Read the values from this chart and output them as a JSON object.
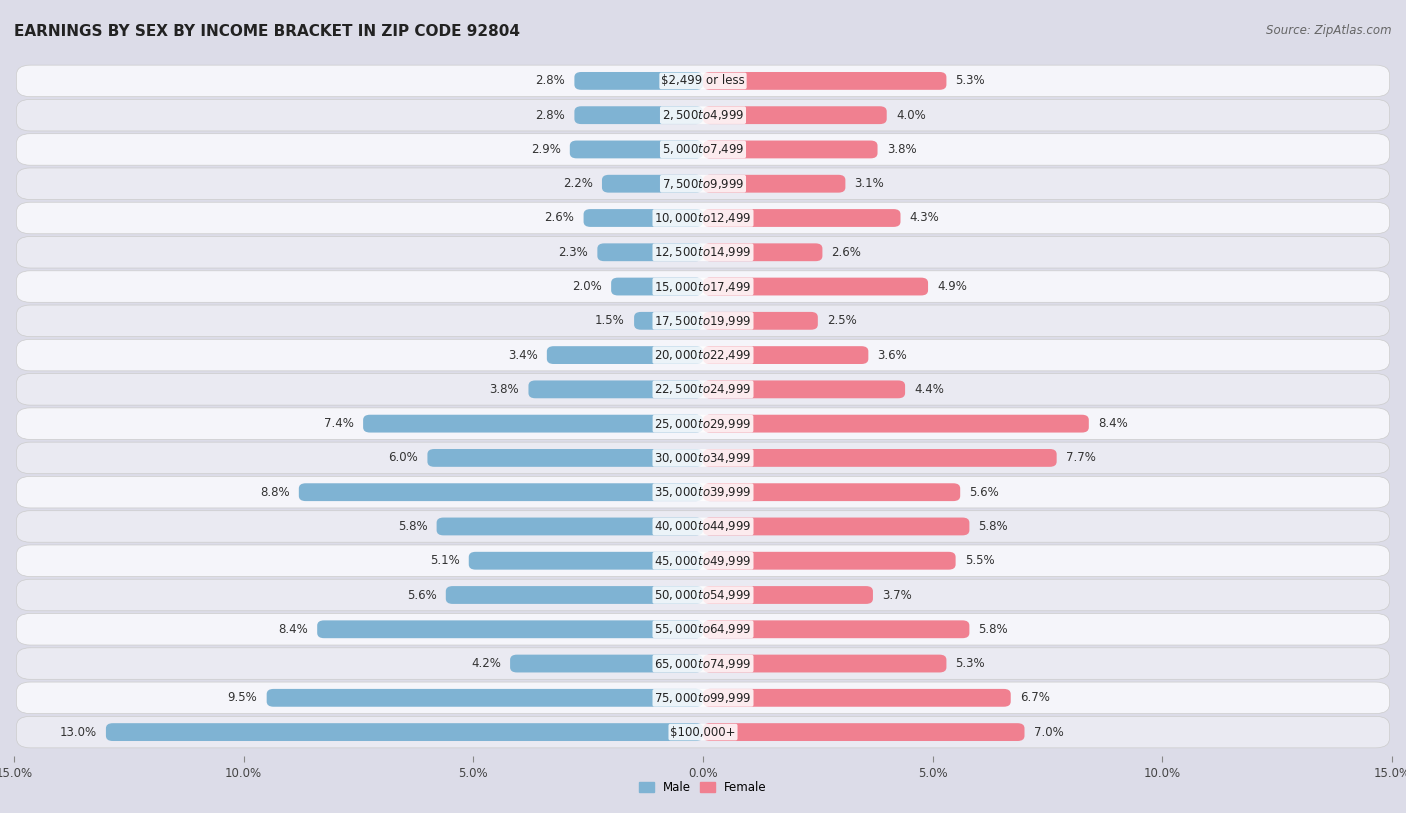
{
  "title": "EARNINGS BY SEX BY INCOME BRACKET IN ZIP CODE 92804",
  "source": "Source: ZipAtlas.com",
  "categories": [
    "$2,499 or less",
    "$2,500 to $4,999",
    "$5,000 to $7,499",
    "$7,500 to $9,999",
    "$10,000 to $12,499",
    "$12,500 to $14,999",
    "$15,000 to $17,499",
    "$17,500 to $19,999",
    "$20,000 to $22,499",
    "$22,500 to $24,999",
    "$25,000 to $29,999",
    "$30,000 to $34,999",
    "$35,000 to $39,999",
    "$40,000 to $44,999",
    "$45,000 to $49,999",
    "$50,000 to $54,999",
    "$55,000 to $64,999",
    "$65,000 to $74,999",
    "$75,000 to $99,999",
    "$100,000+"
  ],
  "male_values": [
    2.8,
    2.8,
    2.9,
    2.2,
    2.6,
    2.3,
    2.0,
    1.5,
    3.4,
    3.8,
    7.4,
    6.0,
    8.8,
    5.8,
    5.1,
    5.6,
    8.4,
    4.2,
    9.5,
    13.0
  ],
  "female_values": [
    5.3,
    4.0,
    3.8,
    3.1,
    4.3,
    2.6,
    4.9,
    2.5,
    3.6,
    4.4,
    8.4,
    7.7,
    5.6,
    5.8,
    5.5,
    3.7,
    5.8,
    5.3,
    6.7,
    7.0
  ],
  "male_color": "#7fb3d3",
  "female_color": "#f08090",
  "male_label": "Male",
  "female_label": "Female",
  "axis_max": 15.0,
  "row_bg_odd": "#f2f2f7",
  "row_bg_even": "#ffffff",
  "outer_bg": "#e8e8ee",
  "title_fontsize": 11,
  "source_fontsize": 8.5,
  "label_fontsize": 8.5,
  "value_fontsize": 8.5,
  "tick_fontsize": 8.5,
  "category_label_fontsize": 8.5
}
